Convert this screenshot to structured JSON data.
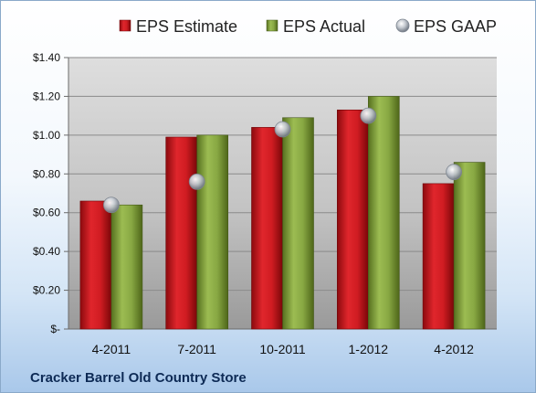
{
  "chart_data": {
    "type": "bar",
    "categories": [
      "4-2011",
      "7-2011",
      "10-2011",
      "1-2012",
      "4-2012"
    ],
    "series": [
      {
        "name": "EPS Estimate",
        "kind": "bar",
        "color": "#c0161c",
        "values": [
          0.66,
          0.99,
          1.04,
          1.13,
          0.75
        ]
      },
      {
        "name": "EPS Actual",
        "kind": "bar",
        "color": "#7e9c3a",
        "values": [
          0.64,
          1.0,
          1.09,
          1.2,
          0.86
        ]
      },
      {
        "name": "EPS GAAP",
        "kind": "marker",
        "color": "#b8bec6",
        "values": [
          0.64,
          0.76,
          1.03,
          1.1,
          0.81
        ]
      }
    ],
    "ylim": [
      0,
      1.4
    ],
    "yticks": [
      0,
      0.2,
      0.4,
      0.6,
      0.8,
      1.0,
      1.2,
      1.4
    ],
    "ytick_labels": [
      "$-",
      "$0.20",
      "$0.40",
      "$0.60",
      "$0.80",
      "$1.00",
      "$1.20",
      "$1.40"
    ],
    "grid": true,
    "legend_position": "top",
    "footer": "Cracker Barrel Old Country Store"
  }
}
